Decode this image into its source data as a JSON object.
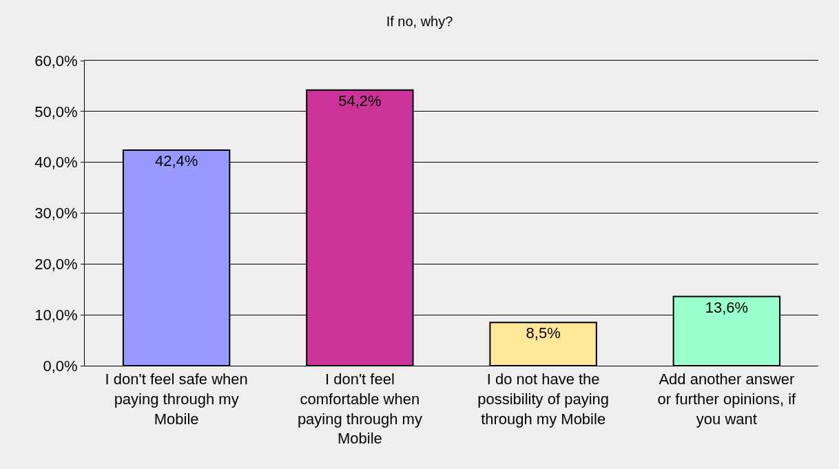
{
  "chart_data": {
    "type": "bar",
    "title": "If no, why?",
    "categories": [
      "I don't feel safe when paying through my Mobile",
      "I don't feel comfortable when paying through my Mobile",
      "I do not have the possibility of paying through my Mobile",
      "Add another answer or further opinions, if you want"
    ],
    "values": [
      42.4,
      54.2,
      8.5,
      13.6
    ],
    "value_labels": [
      "42,4%",
      "54,2%",
      "8,5%",
      "13,6%"
    ],
    "colors": [
      "#9999ff",
      "#cc3399",
      "#ffe699",
      "#99ffcc"
    ],
    "ylim": [
      0,
      60
    ],
    "yticks": [
      {
        "value": 0,
        "label": "0,0%"
      },
      {
        "value": 10,
        "label": "10,0%"
      },
      {
        "value": 20,
        "label": "20,0%"
      },
      {
        "value": 30,
        "label": "30,0%"
      },
      {
        "value": 40,
        "label": "40,0%"
      },
      {
        "value": 50,
        "label": "50,0%"
      },
      {
        "value": 60,
        "label": "60,0%"
      }
    ],
    "grid": "y"
  }
}
